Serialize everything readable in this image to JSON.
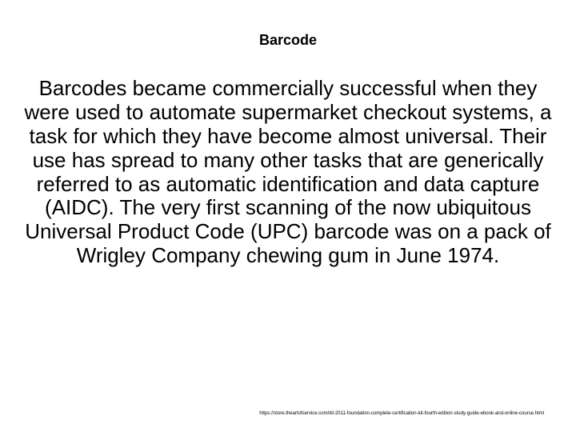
{
  "slide": {
    "title": "Barcode",
    "body": "Barcodes became commercially successful when they were used to automate supermarket checkout systems, a task for which they have become almost universal. Their use has spread to many other tasks that are generically referred to as automatic identification and data capture (AIDC). The very first scanning of the now ubiquitous Universal Product Code (UPC) barcode was on a pack of Wrigley Company chewing gum in June 1974.",
    "footer_url": "https://store.theartofservice.com/itil-2011-foundation-complete-certification-kit-fourth-edition-study-guide-ebook-and-online-course.html"
  },
  "style": {
    "background_color": "#ffffff",
    "text_color": "#000000",
    "title_fontsize": 18,
    "body_fontsize": 26,
    "footer_fontsize": 6,
    "font_family": "Arial"
  }
}
